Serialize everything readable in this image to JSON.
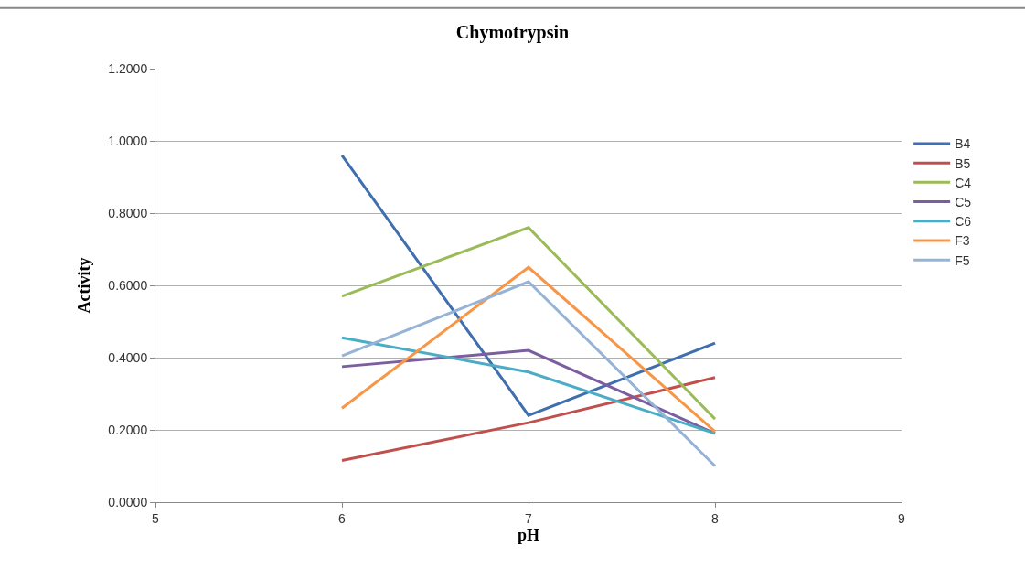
{
  "chart_data": {
    "type": "line",
    "title": "Chymotrypsin",
    "xlabel": "pH",
    "ylabel": "Activity",
    "x": [
      6,
      7,
      8
    ],
    "series": [
      {
        "name": "B4",
        "color": "#3f6fae",
        "values": [
          0.96,
          0.24,
          0.44
        ]
      },
      {
        "name": "B5",
        "color": "#c0504d",
        "values": [
          0.115,
          0.22,
          0.345
        ]
      },
      {
        "name": "C4",
        "color": "#9bbb59",
        "values": [
          0.57,
          0.76,
          0.23
        ]
      },
      {
        "name": "C5",
        "color": "#7b5ea0",
        "values": [
          0.375,
          0.42,
          0.19
        ]
      },
      {
        "name": "C6",
        "color": "#4bacc6",
        "values": [
          0.455,
          0.36,
          0.19
        ]
      },
      {
        "name": "F3",
        "color": "#f79646",
        "values": [
          0.26,
          0.65,
          0.195
        ]
      },
      {
        "name": "F5",
        "color": "#95b3d7",
        "values": [
          0.405,
          0.61,
          0.1
        ]
      }
    ],
    "xlim": [
      5,
      9
    ],
    "xticks": [
      5,
      6,
      7,
      8,
      9
    ],
    "ylim": [
      0,
      1.2
    ],
    "yticks": [
      {
        "value": 0,
        "label": "0.0000"
      },
      {
        "value": 0.2,
        "label": "0.2000"
      },
      {
        "value": 0.4,
        "label": "0.4000"
      },
      {
        "value": 0.6,
        "label": "0.6000"
      },
      {
        "value": 0.8,
        "label": "0.8000"
      },
      {
        "value": 1.0,
        "label": "1.0000"
      },
      {
        "value": 1.2,
        "label": "1.2000"
      }
    ],
    "grid": "y",
    "legend": "right",
    "marker": "none",
    "line_style": "solid"
  }
}
